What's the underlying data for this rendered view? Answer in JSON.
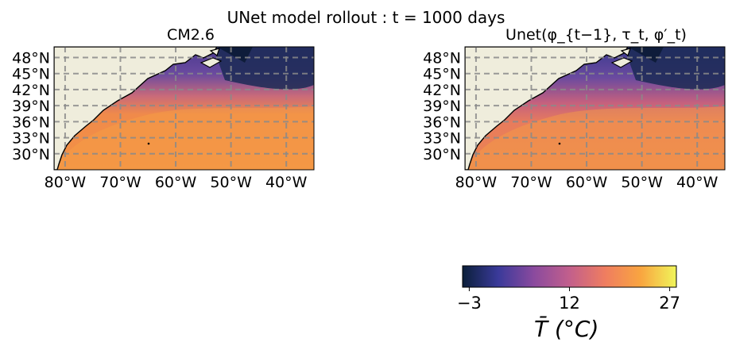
{
  "title": "UNet model rollout : t = 1000 days",
  "chart_data": [
    {
      "type": "heatmap",
      "name": "left-map",
      "title": "CM2.6",
      "xticks": [
        "80°W",
        "70°W",
        "60°W",
        "50°W",
        "40°W"
      ],
      "yticks": [
        "48°N",
        "45°N",
        "42°N",
        "39°N",
        "36°N",
        "33°N",
        "30°N"
      ],
      "xlim": [
        -82,
        -35
      ],
      "ylim": [
        27,
        50
      ],
      "grid": true
    },
    {
      "type": "heatmap",
      "name": "right-map",
      "title": "Unet(φ_{t−1}, τ_t, φ′_t)",
      "xticks": [
        "80°W",
        "70°W",
        "60°W",
        "50°W",
        "40°W"
      ],
      "yticks": [
        "48°N",
        "45°N",
        "42°N",
        "39°N",
        "36°N",
        "33°N",
        "30°N"
      ],
      "xlim": [
        -82,
        -35
      ],
      "ylim": [
        27,
        50
      ],
      "grid": true
    }
  ],
  "colorbar": {
    "ticks": [
      "−3",
      "12",
      "27"
    ],
    "vmin": -4,
    "vmax": 28,
    "label": "T̄ (°C)",
    "colors": [
      "#0b1f3a",
      "#3a3a9a",
      "#8a4a9e",
      "#c25f8c",
      "#ef7d60",
      "#f9a540",
      "#f0f55a"
    ]
  },
  "map_colors": {
    "land": "#efeddc",
    "coast": "#000000",
    "grid": "#8a8a8a"
  }
}
